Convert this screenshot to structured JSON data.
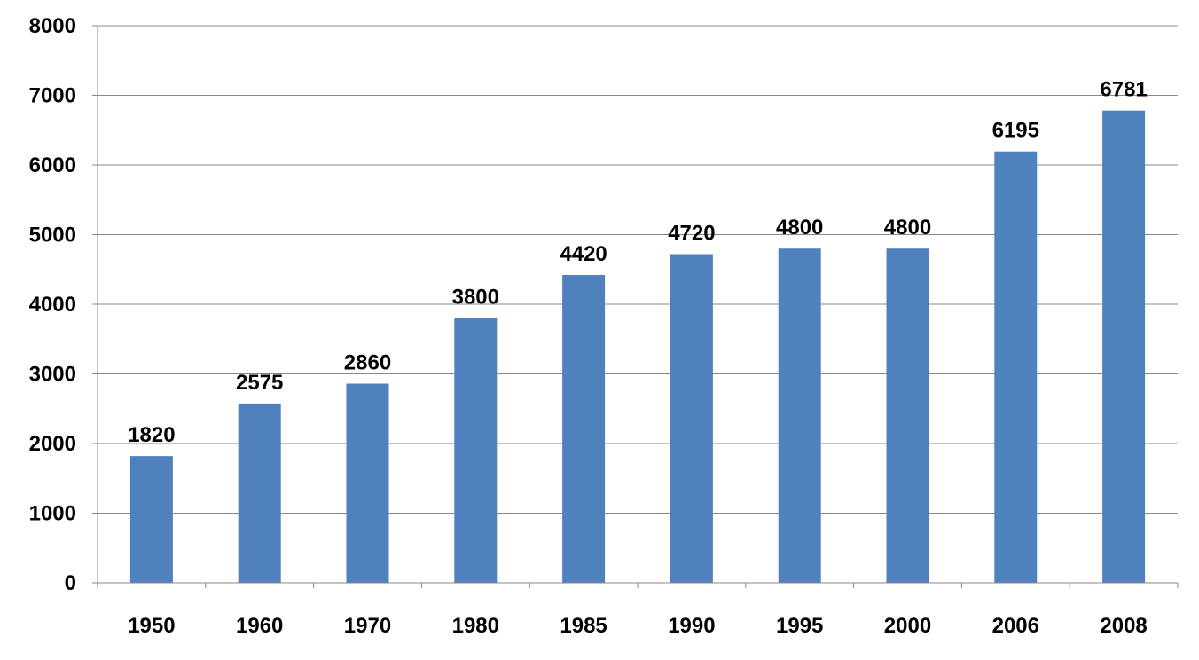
{
  "chart_data": {
    "type": "bar",
    "title": "",
    "xlabel": "",
    "ylabel": "",
    "categories": [
      "1950",
      "1960",
      "1970",
      "1980",
      "1985",
      "1990",
      "1995",
      "2000",
      "2006",
      "2008"
    ],
    "values": [
      1820,
      2575,
      2860,
      3800,
      4420,
      4720,
      4800,
      4800,
      6195,
      6781
    ],
    "data_labels": [
      "1820",
      "2575",
      "2860",
      "3800",
      "4420",
      "4720",
      "4800",
      "4800",
      "6195",
      "6781"
    ],
    "ylim": [
      0,
      8000
    ],
    "y_ticks": [
      0,
      1000,
      2000,
      3000,
      4000,
      5000,
      6000,
      7000,
      8000
    ],
    "y_tick_labels": [
      "0",
      "1000",
      "2000",
      "3000",
      "4000",
      "5000",
      "6000",
      "7000",
      "8000"
    ],
    "grid": true,
    "legend": "none",
    "colors": {
      "bar": "#4F81BD",
      "grid": "#888888",
      "axis": "#888888"
    }
  }
}
